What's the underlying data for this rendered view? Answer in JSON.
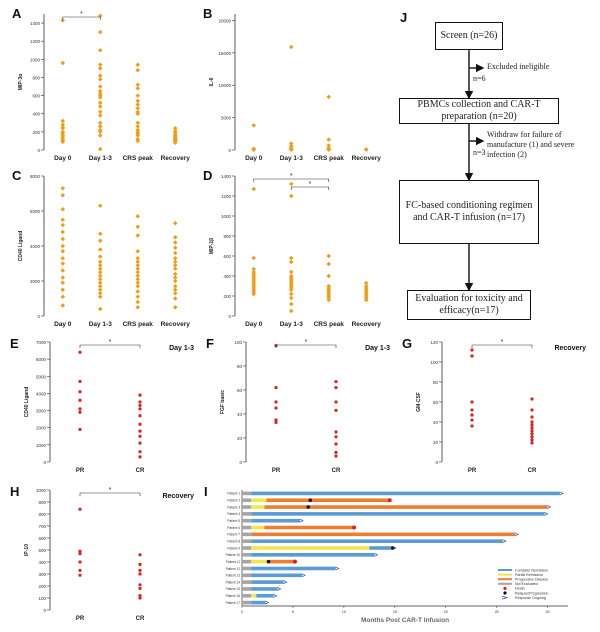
{
  "panel_letters": [
    "A",
    "B",
    "C",
    "D",
    "E",
    "F",
    "G",
    "H",
    "I",
    "J"
  ],
  "chart_data": [
    {
      "id": "A",
      "type": "scatter",
      "ylabel": "MIP-3α",
      "categories": [
        "Day 0",
        "Day 1-3",
        "CRS peak",
        "Recovery"
      ],
      "yticks": [
        "0",
        "200",
        "400",
        "600",
        "800",
        "1000",
        "1200",
        "1400"
      ],
      "ylim": [
        0,
        1500
      ],
      "color": "#f39c12",
      "series": [
        [
          1430,
          960,
          320,
          280,
          250,
          240,
          200,
          180,
          160,
          140,
          120,
          100,
          90
        ],
        [
          1480,
          1300,
          1100,
          940,
          900,
          820,
          780,
          700,
          650,
          620,
          600,
          580,
          520,
          480,
          420,
          380,
          300,
          260,
          220,
          200,
          160,
          10
        ],
        [
          940,
          880,
          720,
          680,
          600,
          540,
          500,
          460,
          420,
          400,
          300,
          260,
          220,
          200,
          180,
          160,
          120,
          100
        ],
        [
          240,
          210,
          190,
          170,
          160,
          150,
          140,
          130,
          120,
          110,
          100,
          90,
          80
        ]
      ],
      "sig": [
        {
          "from": 0,
          "to": 1,
          "label": "*"
        }
      ]
    },
    {
      "id": "B",
      "type": "scatter",
      "ylabel": "IL-6",
      "categories": [
        "Day 0",
        "Day 1-3",
        "CRS peak",
        "Recovery"
      ],
      "yticks": [
        "0",
        "5000",
        "10000",
        "15000",
        "20000"
      ],
      "ylim": [
        0,
        21000
      ],
      "color": "#f39c12",
      "series": [
        [
          3800,
          200,
          100,
          50
        ],
        [
          15900,
          1000,
          600,
          300,
          200,
          100,
          50
        ],
        [
          8200,
          1600,
          700,
          300,
          100,
          50
        ],
        [
          100,
          50
        ]
      ],
      "sig": []
    },
    {
      "id": "C",
      "type": "scatter",
      "ylabel": "CD40 Ligand",
      "categories": [
        "Day 0",
        "Day 1-3",
        "CRS peak",
        "Recovery"
      ],
      "yticks": [
        "0",
        "2000",
        "4000",
        "6000",
        "8000"
      ],
      "ylim": [
        0,
        8000
      ],
      "color": "#f39c12",
      "series": [
        [
          7300,
          6900,
          6100,
          5500,
          5200,
          4800,
          4400,
          4000,
          3700,
          3300,
          3000,
          2600,
          2200,
          1900,
          1500,
          1100,
          600
        ],
        [
          6300,
          4700,
          4300,
          3800,
          3400,
          3100,
          2900,
          2700,
          2500,
          2300,
          2100,
          1900,
          1700,
          1500,
          1300,
          1100,
          400
        ],
        [
          5700,
          5100,
          4600,
          3700,
          3300,
          3100,
          2900,
          2700,
          2500,
          2300,
          2100,
          1900,
          1700,
          1400,
          1100,
          800,
          500
        ],
        [
          5300,
          4500,
          4200,
          3900,
          3600,
          3300,
          3100,
          2900,
          2700,
          2400,
          2200,
          2000,
          1700,
          1500,
          1300,
          1000,
          500
        ]
      ],
      "sig": []
    },
    {
      "id": "D",
      "type": "scatter",
      "ylabel": "MIP-1β",
      "categories": [
        "Day 0",
        "Day 1-3",
        "CRS peak",
        "Recovery"
      ],
      "yticks": [
        "0",
        "200",
        "400",
        "600",
        "800",
        "1000",
        "1200",
        "1400"
      ],
      "ylim": [
        0,
        1400
      ],
      "color": "#f39c12",
      "series": [
        [
          1270,
          580,
          470,
          440,
          420,
          400,
          380,
          360,
          340,
          320,
          300,
          280,
          260,
          240,
          220
        ],
        [
          1320,
          1200,
          580,
          540,
          440,
          400,
          380,
          360,
          340,
          320,
          300,
          280,
          260,
          220,
          180,
          120,
          50
        ],
        [
          600,
          520,
          400,
          300,
          280,
          260,
          240,
          220,
          200,
          180,
          160
        ],
        [
          330,
          300,
          280,
          260,
          240,
          220,
          200,
          180,
          160
        ]
      ],
      "sig": [
        {
          "from": 0,
          "to": 2,
          "label": "*"
        },
        {
          "from": 1,
          "to": 2,
          "label": "*"
        }
      ]
    },
    {
      "id": "E",
      "type": "scatter",
      "ylabel": "CD40 Ligand",
      "title": "Day 1-3",
      "categories": [
        "PR",
        "CR"
      ],
      "yticks": [
        "0",
        "1000",
        "2000",
        "3000",
        "4000",
        "5000",
        "6000",
        "7000"
      ],
      "ylim": [
        0,
        7000
      ],
      "color": "#e02020",
      "series": [
        [
          6400,
          4700,
          4100,
          3600,
          3100,
          2900,
          1900
        ],
        [
          3900,
          3500,
          3300,
          3100,
          2700,
          2200,
          1800,
          1500,
          1100,
          600,
          300
        ]
      ],
      "sig": [
        {
          "from": 0,
          "to": 1,
          "label": "*"
        }
      ]
    },
    {
      "id": "F",
      "type": "scatter",
      "ylabel": "FGF basic",
      "title": "Day 1-3",
      "categories": [
        "PR",
        "CR"
      ],
      "yticks": [
        "0",
        "20",
        "40",
        "60",
        "80",
        "100"
      ],
      "ylim": [
        0,
        100
      ],
      "color": "#e02020",
      "series": [
        [
          97,
          62,
          50,
          45,
          35,
          33
        ],
        [
          67,
          62,
          50,
          43,
          25,
          21,
          15,
          8,
          5
        ]
      ],
      "sig": [
        {
          "from": 0,
          "to": 1,
          "label": "*"
        }
      ]
    },
    {
      "id": "G",
      "type": "scatter",
      "ylabel": "GM-CSF",
      "title": "Recovery",
      "categories": [
        "PR",
        "CR"
      ],
      "yticks": [
        "0",
        "20",
        "40",
        "60",
        "80",
        "100",
        "120"
      ],
      "ylim": [
        0,
        120
      ],
      "color": "#e02020",
      "series": [
        [
          112,
          106,
          60,
          52,
          47,
          42,
          36
        ],
        [
          63,
          52,
          45,
          40,
          37,
          34,
          31,
          28,
          25,
          22,
          19
        ]
      ],
      "sig": [
        {
          "from": 0,
          "to": 1,
          "label": "*"
        }
      ]
    },
    {
      "id": "H",
      "type": "scatter",
      "ylabel": "IP-10",
      "title": "Recovery",
      "categories": [
        "PR",
        "CR"
      ],
      "yticks": [
        "0",
        "100",
        "200",
        "300",
        "400",
        "500",
        "600",
        "700",
        "800",
        "900",
        "1000"
      ],
      "ylim": [
        0,
        1000
      ],
      "color": "#e02020",
      "series": [
        [
          840,
          490,
          470,
          400,
          330,
          290
        ],
        [
          460,
          380,
          330,
          300,
          210,
          180,
          120,
          100
        ]
      ],
      "sig": [
        {
          "from": 0,
          "to": 1,
          "label": "*"
        }
      ]
    },
    {
      "id": "I",
      "type": "swimmer",
      "xlabel": "Months Post CAR-T Infusion",
      "xticks": [
        "0",
        "5",
        "10",
        "15",
        "20",
        "25",
        "30"
      ],
      "xlim": [
        0,
        32
      ],
      "patients": [
        {
          "label": "Patient 1",
          "segs": [
            [
              "#5b9bd5",
              0,
              31.2
            ]
          ]
        },
        {
          "label": "Patient 2",
          "segs": [
            [
              "#f2e64a",
              0,
              2.4
            ],
            [
              "#ed7d31",
              2.4,
              14.5
            ]
          ],
          "markers": [
            [
              "death",
              14.5
            ],
            [
              "relapse",
              6.7
            ]
          ]
        },
        {
          "label": "Patient 3",
          "segs": [
            [
              "#f2e64a",
              0,
              2.2
            ],
            [
              "#ed7d31",
              2.2,
              30.0
            ]
          ],
          "markers": [
            [
              "relapse",
              6.5
            ]
          ]
        },
        {
          "label": "Patient 4",
          "segs": [
            [
              "#5b9bd5",
              0,
              29.7
            ]
          ]
        },
        {
          "label": "Patient 5",
          "segs": [
            [
              "#5b9bd5",
              0,
              5.7
            ]
          ]
        },
        {
          "label": "Patient 6",
          "segs": [
            [
              "#f2e64a",
              0,
              2.2
            ],
            [
              "#ed7d31",
              2.2,
              11.0
            ]
          ],
          "markers": [
            [
              "death",
              11.0
            ]
          ]
        },
        {
          "label": "Patient 7",
          "segs": [
            [
              "#ed7d31",
              0,
              26.8
            ]
          ]
        },
        {
          "label": "Patient 8",
          "segs": [
            [
              "#5b9bd5",
              0,
              25.6
            ]
          ]
        },
        {
          "label": "Patient 9",
          "segs": [
            [
              "#f2e64a",
              0,
              12.5
            ],
            [
              "#5b9bd5",
              12.5,
              14.8
            ]
          ],
          "markers": [
            [
              "relapse",
              14.8
            ]
          ]
        },
        {
          "label": "Patient 10",
          "segs": [
            [
              "#5b9bd5",
              0,
              13.0
            ]
          ]
        },
        {
          "label": "Patient 11",
          "segs": [
            [
              "#f2e64a",
              0,
              2.6
            ],
            [
              "#ed7d31",
              2.6,
              5.2
            ]
          ],
          "markers": [
            [
              "death",
              5.2
            ],
            [
              "relapse",
              2.6
            ]
          ]
        },
        {
          "label": "Patient 12",
          "segs": [
            [
              "#5b9bd5",
              0,
              9.2
            ]
          ]
        },
        {
          "label": "Patient 13",
          "segs": [
            [
              "#5b9bd5",
              0,
              5.9
            ]
          ]
        },
        {
          "label": "Patient 14",
          "segs": [
            [
              "#5b9bd5",
              0,
              4.1
            ]
          ]
        },
        {
          "label": "Patient 15",
          "segs": [
            [
              "#5b9bd5",
              0,
              3.5
            ]
          ]
        },
        {
          "label": "Patient 16",
          "segs": [
            [
              "#f2e64a",
              0,
              1.4
            ],
            [
              "#5b9bd5",
              1.4,
              3.1
            ]
          ]
        },
        {
          "label": "Patient 17",
          "segs": [
            [
              "#5b9bd5",
              0,
              2.3
            ]
          ]
        }
      ],
      "legend": [
        {
          "label": "Complete Remission",
          "color": "#5b9bd5",
          "kind": "line"
        },
        {
          "label": "Partial Remission",
          "color": "#f2e64a",
          "kind": "line"
        },
        {
          "label": "Progressive Disease",
          "color": "#ed7d31",
          "kind": "line"
        },
        {
          "label": "Not Evaluated",
          "color": "#a5a5a5",
          "kind": "line"
        },
        {
          "label": "Death",
          "color": "#e02020",
          "kind": "dot"
        },
        {
          "label": "Relapse/Progression",
          "color": "#111111",
          "kind": "dot"
        },
        {
          "label": "Response Ongoing",
          "color": "#2f5597",
          "kind": "arrow"
        }
      ]
    }
  ],
  "flow": {
    "screen": "Screen (n=26)",
    "excluded": "Excluded ineligible",
    "n6": "n=6",
    "pbmc": "PBMCs collection and CAR-T preparation (n=20)",
    "withdraw": "Withdraw  for failure of manufacture (1) and severe infection (2)",
    "n3": "n=3",
    "fc": "FC-based conditioning regimen and CAR-T infusion (n=17)",
    "eval": "Evaluation for toxicity and efficacy(n=17)"
  }
}
